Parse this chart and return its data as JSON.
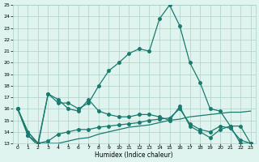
{
  "xlabel": "Humidex (Indice chaleur)",
  "x": [
    0,
    1,
    2,
    3,
    4,
    5,
    6,
    7,
    8,
    9,
    10,
    11,
    12,
    13,
    14,
    15,
    16,
    17,
    18,
    19,
    20,
    21,
    22,
    23
  ],
  "line1": [
    16.0,
    13.7,
    12.8,
    17.3,
    16.5,
    16.5,
    16.0,
    16.5,
    18.0,
    19.3,
    20.0,
    20.8,
    21.2,
    21.0,
    23.8,
    25.0,
    23.2,
    20.0,
    18.3,
    16.0,
    15.8,
    14.5,
    14.5,
    13.0
  ],
  "line2": [
    16.0,
    14.0,
    13.0,
    17.3,
    16.8,
    16.0,
    15.8,
    16.8,
    15.8,
    15.5,
    15.3,
    15.3,
    15.5,
    15.5,
    15.3,
    15.0,
    16.2,
    14.5,
    14.0,
    13.5,
    14.2,
    14.5,
    13.0,
    13.0
  ],
  "line3": [
    16.0,
    14.0,
    13.0,
    13.0,
    13.0,
    13.2,
    13.4,
    13.5,
    13.8,
    14.0,
    14.2,
    14.4,
    14.5,
    14.6,
    14.8,
    15.0,
    15.1,
    15.3,
    15.4,
    15.5,
    15.6,
    15.7,
    15.7,
    15.8
  ],
  "line4": [
    16.0,
    13.7,
    13.0,
    13.2,
    13.8,
    14.0,
    14.2,
    14.2,
    14.4,
    14.5,
    14.6,
    14.7,
    14.8,
    15.0,
    15.1,
    15.2,
    16.0,
    14.7,
    14.2,
    14.0,
    14.5,
    14.3,
    13.3,
    13.0
  ],
  "color": "#1a7a6e",
  "bg_color": "#dff4ef",
  "grid_color": "#aacfc8",
  "ylim": [
    13,
    25
  ],
  "yticks": [
    13,
    14,
    15,
    16,
    17,
    18,
    19,
    20,
    21,
    22,
    23,
    24,
    25
  ],
  "xticks": [
    0,
    1,
    2,
    3,
    4,
    5,
    6,
    7,
    8,
    9,
    10,
    11,
    12,
    13,
    14,
    15,
    16,
    17,
    18,
    19,
    20,
    21,
    22,
    23
  ],
  "markersize": 2.5,
  "linewidth": 0.9
}
